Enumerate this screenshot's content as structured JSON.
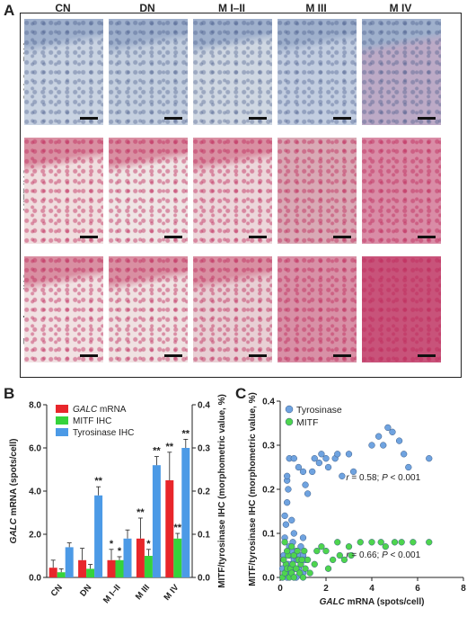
{
  "panels": {
    "a": {
      "letter": "A"
    },
    "b": {
      "letter": "B"
    },
    "c": {
      "letter": "C"
    }
  },
  "figure_a": {
    "columns": [
      "CN",
      "DN",
      "M I–II",
      "M III",
      "M IV"
    ],
    "rows": [
      {
        "label_italic": "GALC",
        "label_rest": " mRNA",
        "tint": "blue"
      },
      {
        "label_italic": "",
        "label_rest": "MITF IHC",
        "tint": "pink"
      },
      {
        "label_italic": "",
        "label_rest": "Tyrosinase IHC",
        "tint": "pink"
      }
    ],
    "tile_colors": {
      "blue": [
        "#c9d3e2",
        "#c4cfdf",
        "#cfd7e2",
        "#c2cde0",
        "#bcaac6"
      ],
      "pink": [
        "#f0dedf",
        "#efe5e5",
        "#ecd6da",
        "#d9a9b5",
        "#d98ca6"
      ],
      "pink3": [
        "#f1e2e3",
        "#efe2e2",
        "#e8cfd4",
        "#d890a6",
        "#c8537a"
      ]
    }
  },
  "chart_data": [
    {
      "type": "bar",
      "categories": [
        "CN",
        "DN",
        "M I–II",
        "M III",
        "M IV"
      ],
      "series": [
        {
          "name_italic": "GALC",
          "name_rest": " mRNA",
          "color": "#e8262b",
          "axis": "left",
          "values": [
            0.45,
            0.8,
            0.8,
            1.8,
            4.5
          ],
          "errors": [
            0.35,
            0.55,
            0.5,
            0.95,
            1.3
          ]
        },
        {
          "name": "MITF IHC",
          "color": "#35d33b",
          "axis": "right",
          "values": [
            0.012,
            0.02,
            0.04,
            0.05,
            0.09
          ],
          "errors": [
            0.008,
            0.01,
            0.008,
            0.015,
            0.012
          ]
        },
        {
          "name": "Tyrosinase IHC",
          "color": "#4c9ae6",
          "axis": "right",
          "values": [
            0.07,
            0.19,
            0.09,
            0.26,
            0.3
          ],
          "errors": [
            0.01,
            0.02,
            0.02,
            0.02,
            0.02
          ]
        }
      ],
      "significance": [
        {
          "category": 1,
          "series": 2,
          "label": "**"
        },
        {
          "category": 2,
          "series": 0,
          "label": "*"
        },
        {
          "category": 2,
          "series": 1,
          "label": "*"
        },
        {
          "category": 3,
          "series": 0,
          "label": "**"
        },
        {
          "category": 3,
          "series": 1,
          "label": "*"
        },
        {
          "category": 3,
          "series": 2,
          "label": "**"
        },
        {
          "category": 4,
          "series": 0,
          "label": "**"
        },
        {
          "category": 4,
          "series": 1,
          "label": "**"
        },
        {
          "category": 4,
          "series": 2,
          "label": "**"
        }
      ],
      "ylabel_left_italic": "GALC",
      "ylabel_left_rest": " mRNA (spots/cell)",
      "ylabel_right": "MITF/tyrosinase IHC (morphometric value, %)",
      "ylim_left": [
        0,
        8
      ],
      "yticks_left": [
        "0.0",
        "2.0",
        "4.0",
        "6.0",
        "8.0"
      ],
      "ylim_right": [
        0,
        0.4
      ],
      "yticks_right": [
        "0.0",
        "0.1",
        "0.2",
        "0.3",
        "0.4"
      ],
      "legend": "top-left"
    },
    {
      "type": "scatter",
      "xlabel_italic": "GALC",
      "xlabel_rest": " mRNA (spots/cell)",
      "ylabel": "MITF/tyrosinase IHC (morphometric value, %)",
      "xlim": [
        0,
        8
      ],
      "xticks": [
        "0",
        "2",
        "4",
        "6",
        "8"
      ],
      "ylim": [
        0,
        0.4
      ],
      "yticks": [
        "0.0",
        "0.1",
        "0.2",
        "0.3",
        "0.4"
      ],
      "legend": "top-left",
      "series": [
        {
          "name": "Tyrosinase",
          "color": "#6fa3e0",
          "points": [
            [
              0.1,
              0.02
            ],
            [
              0.15,
              0.05
            ],
            [
              0.2,
              0.09
            ],
            [
              0.25,
              0.12
            ],
            [
              0.3,
              0.17
            ],
            [
              0.3,
              0.22
            ],
            [
              0.35,
              0.2
            ],
            [
              0.4,
              0.07
            ],
            [
              0.45,
              0.05
            ],
            [
              0.5,
              0.03
            ],
            [
              0.55,
              0.08
            ],
            [
              0.6,
              0.1
            ],
            [
              0.6,
              0.04
            ],
            [
              0.7,
              0.06
            ],
            [
              0.8,
              0.02
            ],
            [
              0.85,
              0.05
            ],
            [
              0.9,
              0.07
            ],
            [
              1.0,
              0.09
            ],
            [
              1.0,
              0.05
            ],
            [
              1.1,
              0.04
            ],
            [
              0.2,
              0.01
            ],
            [
              0.35,
              0.03
            ],
            [
              0.5,
              0.06
            ],
            [
              0.65,
              0.02
            ],
            [
              0.75,
              0.04
            ],
            [
              0.3,
              0.23
            ],
            [
              0.4,
              0.27
            ],
            [
              0.6,
              0.27
            ],
            [
              0.8,
              0.25
            ],
            [
              1.0,
              0.24
            ],
            [
              1.1,
              0.21
            ],
            [
              1.2,
              0.19
            ],
            [
              1.4,
              0.24
            ],
            [
              1.5,
              0.27
            ],
            [
              1.7,
              0.26
            ],
            [
              1.8,
              0.28
            ],
            [
              2.0,
              0.27
            ],
            [
              2.1,
              0.25
            ],
            [
              2.4,
              0.27
            ],
            [
              2.5,
              0.28
            ],
            [
              2.7,
              0.23
            ],
            [
              3.0,
              0.28
            ],
            [
              3.2,
              0.24
            ],
            [
              4.0,
              0.3
            ],
            [
              4.3,
              0.32
            ],
            [
              4.5,
              0.3
            ],
            [
              4.7,
              0.34
            ],
            [
              4.9,
              0.33
            ],
            [
              5.2,
              0.31
            ],
            [
              5.4,
              0.28
            ],
            [
              5.6,
              0.25
            ],
            [
              6.5,
              0.27
            ],
            [
              0.2,
              0.14
            ],
            [
              0.5,
              0.13
            ],
            [
              0.3,
              0.0
            ],
            [
              0.4,
              0.01
            ],
            [
              1.0,
              0.01
            ],
            [
              0.7,
              0.0
            ]
          ]
        },
        {
          "name": "MITF",
          "color": "#4ed54e",
          "points": [
            [
              0.1,
              0.0
            ],
            [
              0.2,
              0.01
            ],
            [
              0.25,
              0.03
            ],
            [
              0.3,
              0.02
            ],
            [
              0.35,
              0.05
            ],
            [
              0.4,
              0.0
            ],
            [
              0.45,
              0.02
            ],
            [
              0.5,
              0.01
            ],
            [
              0.55,
              0.03
            ],
            [
              0.6,
              0.0
            ],
            [
              0.7,
              0.02
            ],
            [
              0.8,
              0.04
            ],
            [
              0.85,
              0.01
            ],
            [
              0.9,
              0.03
            ],
            [
              1.0,
              0.0
            ],
            [
              1.1,
              0.02
            ],
            [
              1.2,
              0.04
            ],
            [
              1.3,
              0.01
            ],
            [
              1.5,
              0.03
            ],
            [
              1.6,
              0.06
            ],
            [
              1.8,
              0.07
            ],
            [
              2.0,
              0.06
            ],
            [
              2.1,
              0.02
            ],
            [
              2.3,
              0.04
            ],
            [
              2.5,
              0.08
            ],
            [
              2.6,
              0.05
            ],
            [
              2.8,
              0.04
            ],
            [
              3.0,
              0.07
            ],
            [
              3.1,
              0.05
            ],
            [
              3.5,
              0.08
            ],
            [
              4.0,
              0.08
            ],
            [
              4.4,
              0.08
            ],
            [
              4.6,
              0.07
            ],
            [
              5.0,
              0.08
            ],
            [
              5.3,
              0.08
            ],
            [
              5.8,
              0.08
            ],
            [
              6.5,
              0.08
            ],
            [
              0.15,
              0.04
            ],
            [
              0.3,
              0.06
            ],
            [
              0.6,
              0.05
            ],
            [
              0.75,
              0.06
            ],
            [
              0.95,
              0.04
            ],
            [
              1.05,
              0.06
            ],
            [
              0.5,
              0.07
            ],
            [
              0.2,
              0.08
            ]
          ]
        }
      ],
      "annotations": [
        {
          "r_label": "r",
          "text": " = 0.58; ",
          "p_label": "P",
          "p_text": " < 0.001",
          "anchor_series": 0
        },
        {
          "r_label": "r",
          "text": " = 0.66; ",
          "p_label": "P",
          "p_text": " < 0.001",
          "anchor_series": 1
        }
      ]
    }
  ]
}
